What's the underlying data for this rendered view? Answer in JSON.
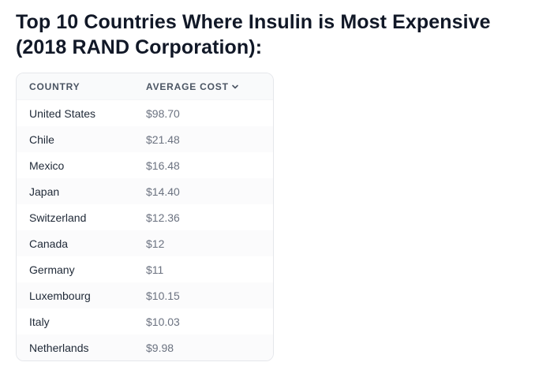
{
  "heading": "Top 10 Countries Where Insulin is Most Expensive (2018 RAND Corporation):",
  "table": {
    "headers": {
      "country": "COUNTRY",
      "cost": "AVERAGE COST"
    },
    "sort_icon": "chevron-down-icon",
    "rows": [
      {
        "country": "United States",
        "cost": "$98.70"
      },
      {
        "country": "Chile",
        "cost": "$21.48"
      },
      {
        "country": "Mexico",
        "cost": "$16.48"
      },
      {
        "country": "Japan",
        "cost": "$14.40"
      },
      {
        "country": "Switzerland",
        "cost": "$12.36"
      },
      {
        "country": "Canada",
        "cost": "$12"
      },
      {
        "country": "Germany",
        "cost": "$11"
      },
      {
        "country": "Luxembourg",
        "cost": "$10.15"
      },
      {
        "country": "Italy",
        "cost": "$10.03"
      },
      {
        "country": "Netherlands",
        "cost": "$9.98"
      }
    ]
  }
}
